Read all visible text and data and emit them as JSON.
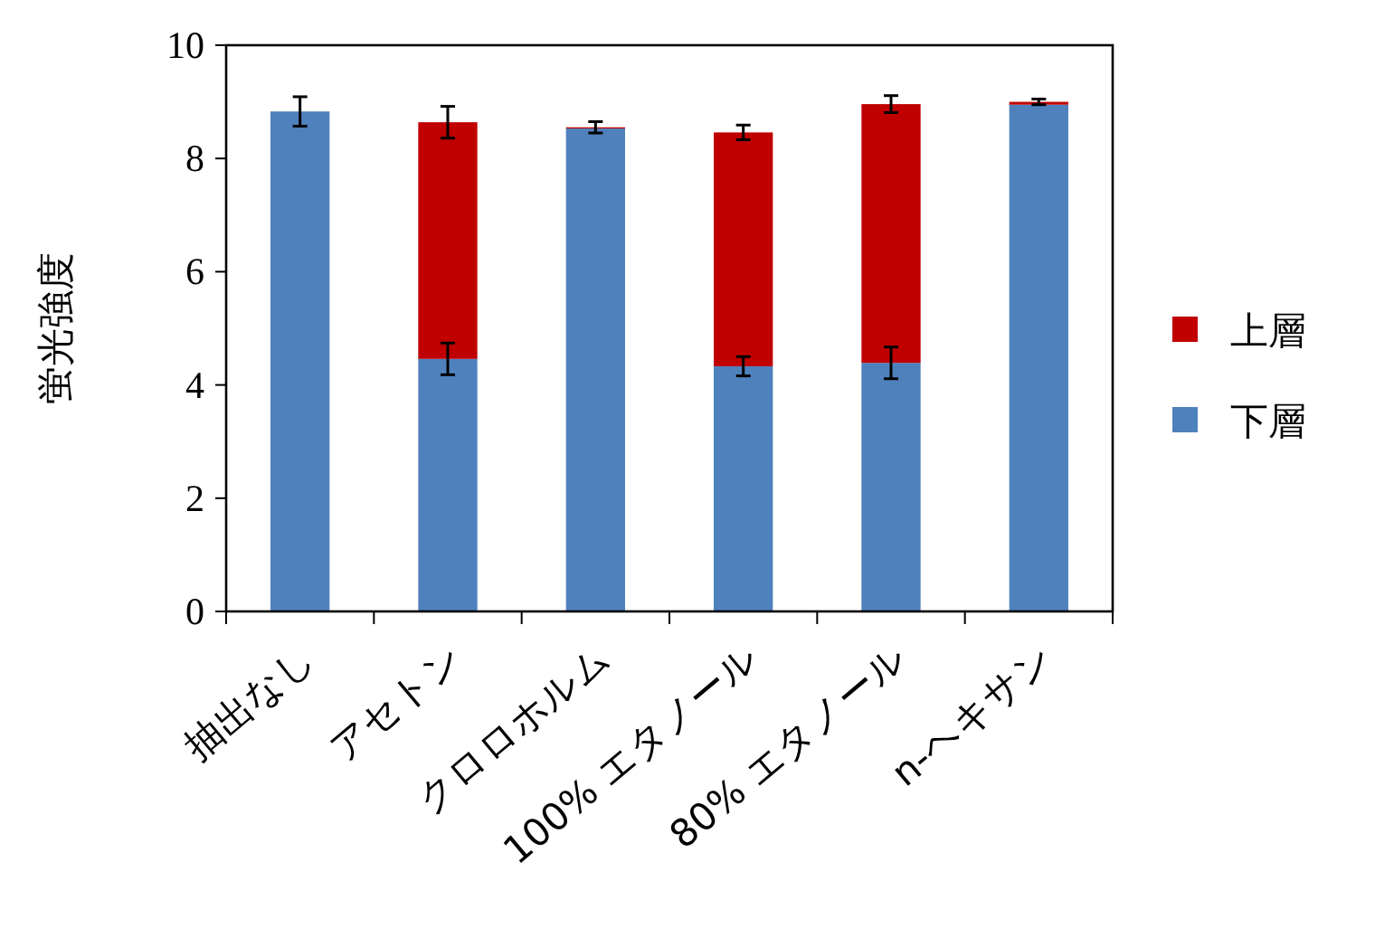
{
  "chart_data": {
    "type": "bar",
    "stacked": true,
    "ylabel": "蛍光強度",
    "categories": [
      "抽出なし",
      "アセトン",
      "クロロホルム",
      "100% エタノール",
      "80% エタノール",
      "n-ヘキサン"
    ],
    "series": [
      {
        "name": "下層",
        "color": "#4f81bd",
        "values": [
          8.83,
          4.46,
          8.53,
          4.33,
          4.39,
          8.95
        ],
        "errors": [
          0.26,
          0.28,
          null,
          0.17,
          0.28,
          null
        ]
      },
      {
        "name": "上層",
        "color": "#c00000",
        "values": [
          0,
          4.18,
          0.02,
          4.13,
          4.57,
          0.05
        ],
        "errors": [
          null,
          0.28,
          0.1,
          0.13,
          0.15,
          0.05
        ]
      }
    ],
    "ylim": [
      0,
      10
    ],
    "yticks": [
      0,
      2,
      4,
      6,
      8,
      10
    ],
    "legend": "right",
    "grid": false
  }
}
